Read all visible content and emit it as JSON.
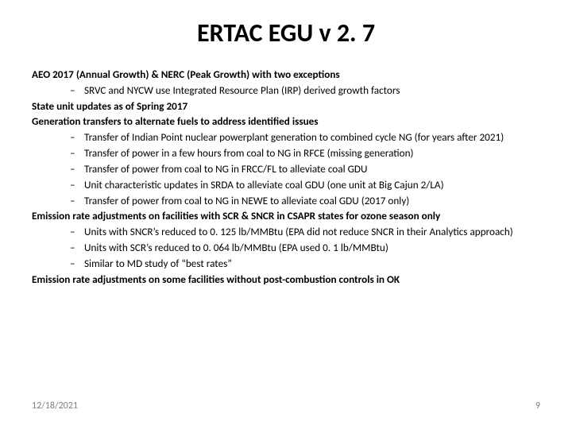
{
  "title": "ERTAC EGU v 2. 7",
  "footer": {
    "date": "12/18/2021",
    "page": "9"
  },
  "items": [
    {
      "text": "AEO 2017 (Annual Growth) & NERC (Peak Growth) with two exceptions",
      "bold": true,
      "subs": [
        "SRVC and NYCW use Integrated Resource Plan (IRP) derived growth factors"
      ]
    },
    {
      "text": "State unit updates as of Spring 2017",
      "bold": true,
      "subs": []
    },
    {
      "text": "Generation transfers to alternate fuels to address identified issues",
      "bold": true,
      "subs": [
        "Transfer of Indian Point nuclear powerplant generation to combined cycle NG (for years after 2021)",
        "Transfer of power in a few hours from coal to NG in RFCE (missing generation)",
        "Transfer of power from coal to NG in FRCC/FL to alleviate coal GDU",
        "Unit characteristic updates in SRDA to alleviate coal GDU (one unit at Big Cajun 2/LA)",
        "Transfer of power from coal to NG in NEWE to alleviate coal GDU (2017 only)"
      ]
    },
    {
      "text": "Emission rate adjustments on facilities with SCR & SNCR in CSAPR states for ozone season only",
      "bold": true,
      "subs": [
        "Units with SNCR’s reduced to 0. 125 lb/MMBtu (EPA did not reduce SNCR in their Analytics approach)",
        "Units with SCR’s reduced to 0. 064 lb/MMBtu (EPA used 0. 1 lb/MMBtu)",
        "Similar to MD study of “best rates”"
      ]
    },
    {
      "text": "Emission rate adjustments on some facilities without post-combustion controls in OK",
      "bold": true,
      "subs": []
    }
  ]
}
